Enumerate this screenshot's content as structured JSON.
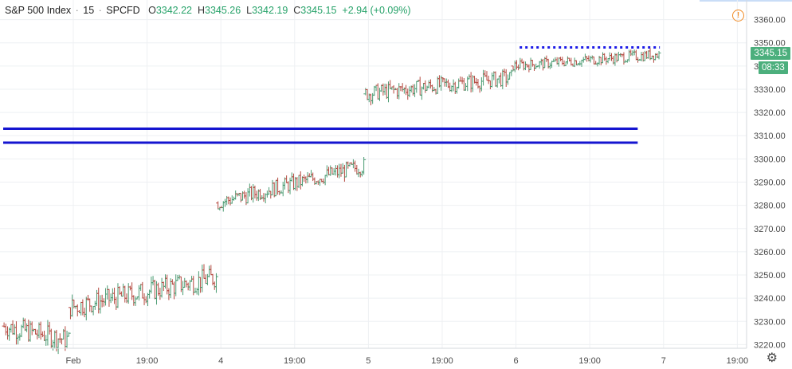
{
  "legend": {
    "symbol": "S&P 500 Index",
    "interval": "15",
    "source": "SPCFD",
    "o_label": "O",
    "o_value": "3342.22",
    "h_label": "H",
    "h_value": "3345.26",
    "l_label": "L",
    "l_value": "3342.19",
    "c_label": "C",
    "c_value": "3345.15",
    "change": "+2.94 (+0.09%)"
  },
  "price_tag": {
    "value": "3345.15",
    "countdown": "08:33",
    "color": "#4caf7d"
  },
  "colors": {
    "up": "#4a9b72",
    "down": "#b5483f",
    "level": "#1515d0",
    "dotted": "#1a1ae6",
    "axis_text": "#4a4a4a"
  },
  "icons": {
    "alert": "alert-icon",
    "settings": "gear-icon"
  },
  "chart_data": {
    "type": "ohlc",
    "x_range": [
      0,
      200
    ],
    "ylim": [
      3215,
      3365
    ],
    "yticks": [
      3220,
      3230,
      3240,
      3250,
      3260,
      3270,
      3280,
      3290,
      3300,
      3310,
      3320,
      3330,
      3340,
      3350,
      3360
    ],
    "ytick_labels": [
      "3220.00",
      "3230.00",
      "3240.00",
      "3250.00",
      "3260.00",
      "3270.00",
      "3280.00",
      "3290.00",
      "3300.00",
      "3310.00",
      "3320.00",
      "3330.00",
      "3340.00",
      "3350.00",
      "3360.00"
    ],
    "xticks": [
      {
        "label": "Feb",
        "x": 19
      },
      {
        "label": "19:00",
        "x": 39
      },
      {
        "label": "4",
        "x": 59
      },
      {
        "label": "19:00",
        "x": 79
      },
      {
        "label": "5",
        "x": 99
      },
      {
        "label": "19:00",
        "x": 119
      },
      {
        "label": "6",
        "x": 139
      },
      {
        "label": "19:00",
        "x": 159
      },
      {
        "label": "7",
        "x": 179
      },
      {
        "label": "19:00",
        "x": 199
      }
    ],
    "x_sessions": [
      {
        "x_start": 0,
        "x_end": 18,
        "y_start": 3228,
        "y_end": 3222,
        "vol": 4
      },
      {
        "x_start": 18,
        "x_end": 58,
        "y_start": 3236,
        "y_end": 3249,
        "vol": 4
      },
      {
        "x_start": 58,
        "x_end": 98,
        "y_start": 3281,
        "y_end": 3297,
        "vol": 3
      },
      {
        "x_start": 98,
        "x_end": 138,
        "y_start": 3328,
        "y_end": 3335,
        "vol": 3
      },
      {
        "x_start": 138,
        "x_end": 178,
        "y_start": 3340,
        "y_end": 3345,
        "vol": 2
      }
    ],
    "horizontal_levels": [
      {
        "value": 3313,
        "x_start": 0,
        "x_end": 172,
        "style": "solid"
      },
      {
        "value": 3307,
        "x_start": 0,
        "x_end": 172,
        "style": "solid"
      },
      {
        "value": 3348,
        "x_start": 140,
        "x_end": 178,
        "style": "dotted"
      }
    ],
    "last_price": 3345.15,
    "title": "",
    "xlabel": "",
    "ylabel": ""
  }
}
